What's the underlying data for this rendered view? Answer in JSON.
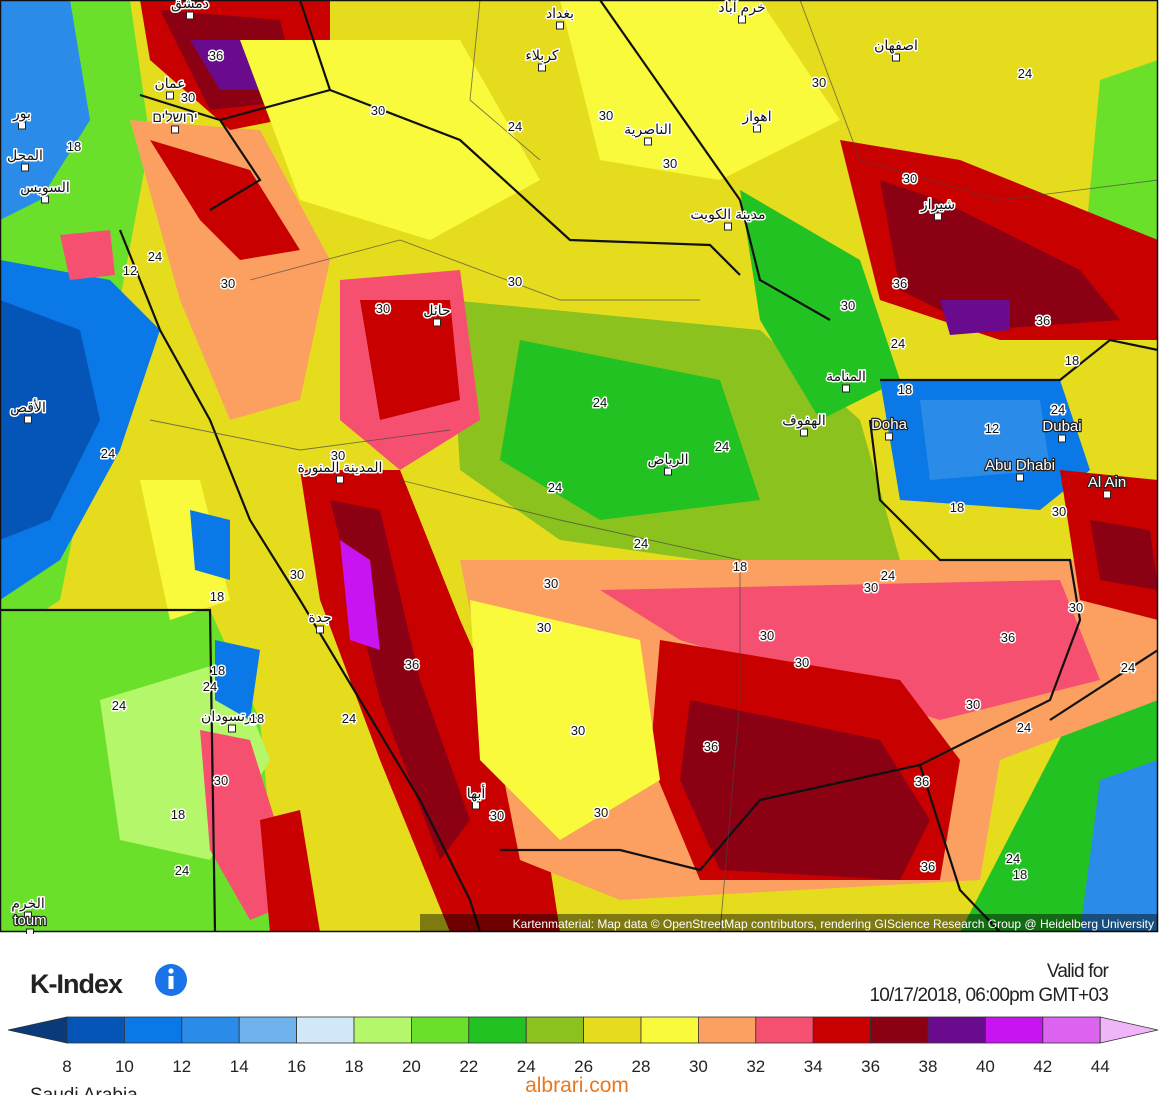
{
  "map": {
    "cities": [
      "دمشق",
      "بغداد",
      "خرم آباد",
      "اصفهان",
      "كربلاء",
      "عمان",
      "بور",
      "ירושלים",
      "المحل",
      "السويس",
      "الناصرية",
      "اهواز",
      "شيراز",
      "مدينة الكويت",
      "حائل",
      "المنامة",
      "الهفوف",
      "Doha",
      "Dubai",
      "Abu Dhabi",
      "Al Ain",
      "الرياض",
      "المدينة المنورة",
      "جدة",
      "بورتسودان",
      "أبها",
      "الأقص",
      "الخرم",
      "toum"
    ],
    "contour_labels": [
      36,
      30,
      30,
      24,
      30,
      30,
      30,
      24,
      30,
      18,
      24,
      12,
      30,
      30,
      30,
      30,
      24,
      36,
      36,
      18,
      18,
      12,
      24,
      18,
      30,
      24,
      24,
      24,
      24,
      18,
      24,
      30,
      30,
      18,
      30,
      30,
      30,
      30,
      30,
      24,
      36,
      24,
      30,
      24,
      36,
      24,
      18,
      24,
      24,
      18,
      30,
      36,
      36,
      30,
      18,
      30,
      30,
      24,
      36,
      24,
      18,
      30
    ],
    "attribution": "Kartenmaterial: Map data © OpenStreetMap contributors, rendering GIScience Research Group @ Heidelberg University"
  },
  "legend": {
    "title": "K-Index",
    "valid_label": "Valid for",
    "valid_time": "10/17/2018, 06:00pm GMT+03",
    "ticks": [
      8,
      10,
      12,
      14,
      16,
      18,
      20,
      22,
      24,
      26,
      28,
      30,
      32,
      34,
      36,
      38,
      40,
      42,
      44
    ],
    "under_color": "#0a3a7a",
    "colors": [
      "#0555b8",
      "#0a78e6",
      "#2a8ce8",
      "#6fb2ee",
      "#d0e8f8",
      "#b5f76a",
      "#6ae02a",
      "#22c222",
      "#8cc21e",
      "#e6dc1e",
      "#fafa3c",
      "#fba060",
      "#f55070",
      "#c80000",
      "#8c0014",
      "#6a0a8c",
      "#c814f0",
      "#dc64f0"
    ],
    "over_color": "#f0b4f8"
  },
  "footer": {
    "region": "Saudi Arabia",
    "watermark": "albrari.com"
  }
}
